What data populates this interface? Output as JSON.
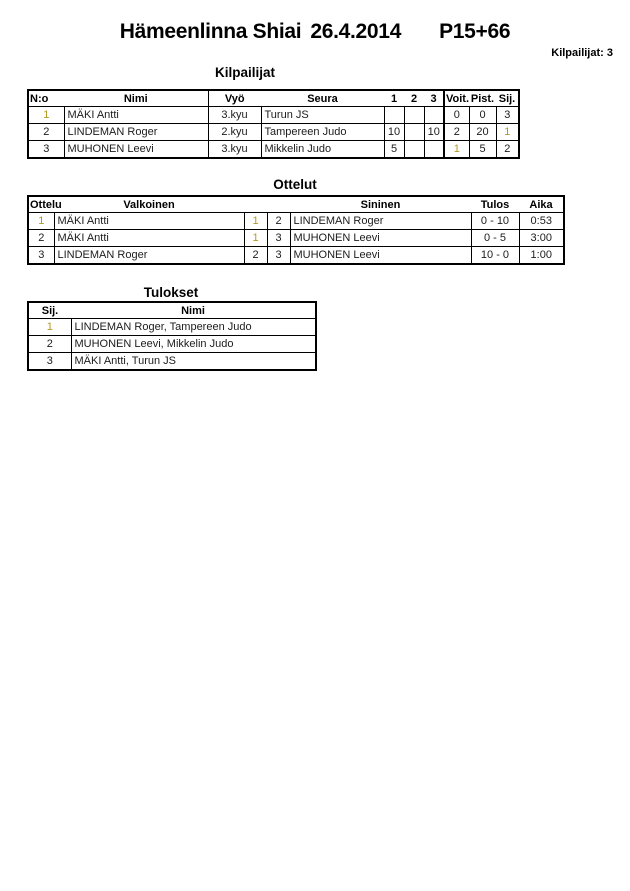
{
  "header": {
    "event": "Hämeenlinna Shiai",
    "date": "26.4.2014",
    "category": "P15+66",
    "participants": "Kilpailijat: 3"
  },
  "competitors": {
    "title": "Kilpailijat",
    "columns": [
      "N:o",
      "Nimi",
      "Vyö",
      "Seura",
      "1",
      "2",
      "3",
      "Voit.",
      "Pist.",
      "Sij."
    ],
    "rows": [
      {
        "cells": [
          "1",
          "MÄKI Antti",
          "3.kyu",
          "Turun JS",
          "",
          "",
          "",
          "0",
          "0",
          "3"
        ],
        "muted": [
          0
        ]
      },
      {
        "cells": [
          "2",
          "LINDEMAN Roger",
          "2.kyu",
          "Tampereen Judo",
          "10",
          "",
          "10",
          "2",
          "20",
          "1"
        ],
        "muted": [
          9
        ]
      },
      {
        "cells": [
          "3",
          "MUHONEN Leevi",
          "3.kyu",
          "Mikkelin Judo",
          "5",
          "",
          "",
          "1",
          "5",
          "2"
        ],
        "muted": [
          7
        ]
      }
    ]
  },
  "matches": {
    "title": "Ottelut",
    "columns": [
      "Ottelu",
      "Valkoinen",
      "",
      "",
      "Sininen",
      "Tulos",
      "Aika"
    ],
    "rows": [
      {
        "cells": [
          "1",
          "MÄKI Antti",
          "1",
          "2",
          "LINDEMAN Roger",
          "0 - 10",
          "0:53"
        ],
        "muted": [
          0,
          2
        ]
      },
      {
        "cells": [
          "2",
          "MÄKI Antti",
          "1",
          "3",
          "MUHONEN Leevi",
          "0 - 5",
          "3:00"
        ],
        "muted": [
          2
        ]
      },
      {
        "cells": [
          "3",
          "LINDEMAN Roger",
          "2",
          "3",
          "MUHONEN Leevi",
          "10 - 0",
          "1:00"
        ],
        "muted": []
      }
    ]
  },
  "results": {
    "title": "Tulokset",
    "columns": [
      "Sij.",
      "Nimi"
    ],
    "rows": [
      {
        "cells": [
          "1",
          "LINDEMAN Roger, Tampereen Judo"
        ],
        "muted": [
          0
        ]
      },
      {
        "cells": [
          "2",
          "MUHONEN Leevi, Mikkelin Judo"
        ],
        "muted": []
      },
      {
        "cells": [
          "3",
          "MÄKI Antti, Turun JS"
        ],
        "muted": []
      }
    ]
  },
  "colors": {
    "muted_digit": "#b39a20",
    "border": "#000000",
    "text": "#1c1c1c"
  }
}
